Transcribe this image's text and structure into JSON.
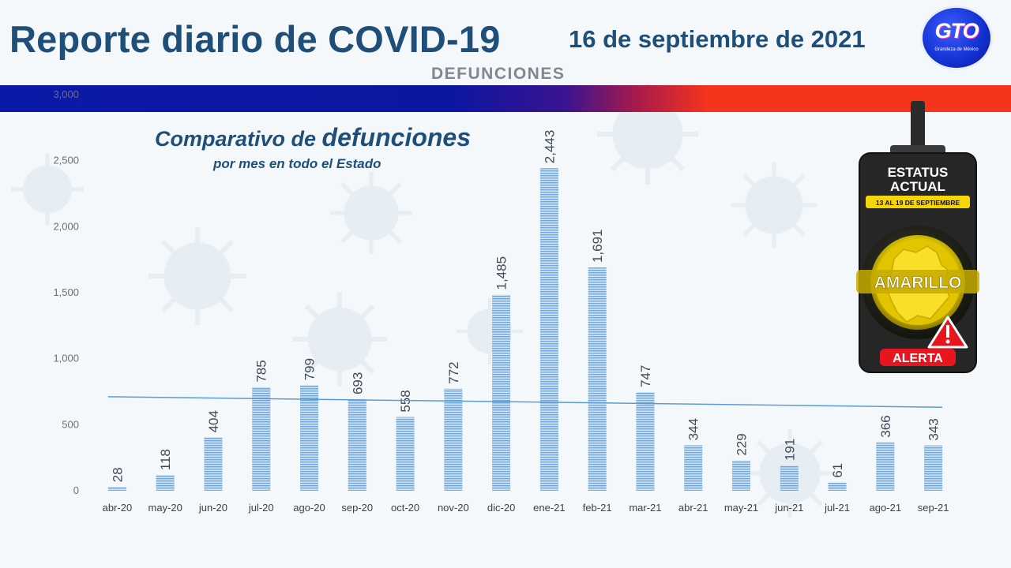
{
  "header": {
    "title": "Reporte diario de COVID-19",
    "date": "16 de septiembre de 2021",
    "section": "DEFUNCIONES"
  },
  "logo": {
    "text": "GTO",
    "tagline": "Grandeza de México"
  },
  "colors": {
    "title": "#1f4e79",
    "bar": "#9dc3e6",
    "trend": "#5b9bd5",
    "status": "#f5d40a",
    "alert": "#e8141e"
  },
  "status_panel": {
    "heading_line1": "ESTATUS",
    "heading_line2": "ACTUAL",
    "period": "13 AL 19 DE SEPTIEMBRE",
    "level": "AMARILLO",
    "alert_label": "ALERTA",
    "alert_icon": "exclamation-icon"
  },
  "chart_data": {
    "type": "bar",
    "title_part1": "Comparativo de ",
    "title_part2": "defunciones",
    "subtitle": "por mes en todo el Estado",
    "categories": [
      "abr-20",
      "may-20",
      "jun-20",
      "jul-20",
      "ago-20",
      "sep-20",
      "oct-20",
      "nov-20",
      "dic-20",
      "ene-21",
      "feb-21",
      "mar-21",
      "abr-21",
      "may-21",
      "jun-21",
      "jul-21",
      "ago-21",
      "sep-21"
    ],
    "values": [
      28,
      118,
      404,
      785,
      799,
      693,
      558,
      772,
      1485,
      2443,
      1691,
      747,
      344,
      229,
      191,
      61,
      366,
      343
    ],
    "value_labels": [
      "28",
      "118",
      "404",
      "785",
      "799",
      "693",
      "558",
      "772",
      "1,485",
      "2,443",
      "1,691",
      "747",
      "344",
      "229",
      "191",
      "61",
      "366",
      "343"
    ],
    "yticks": [
      0,
      500,
      1000,
      1500,
      2000,
      2500,
      3000
    ],
    "ytick_labels": [
      "0",
      "500",
      "1,000",
      "1,500",
      "2,000",
      "2,500",
      "3,000"
    ],
    "ylim": [
      0,
      3000
    ],
    "trendline": {
      "start": 712,
      "end": 632
    },
    "grid": false,
    "legend": "none"
  }
}
